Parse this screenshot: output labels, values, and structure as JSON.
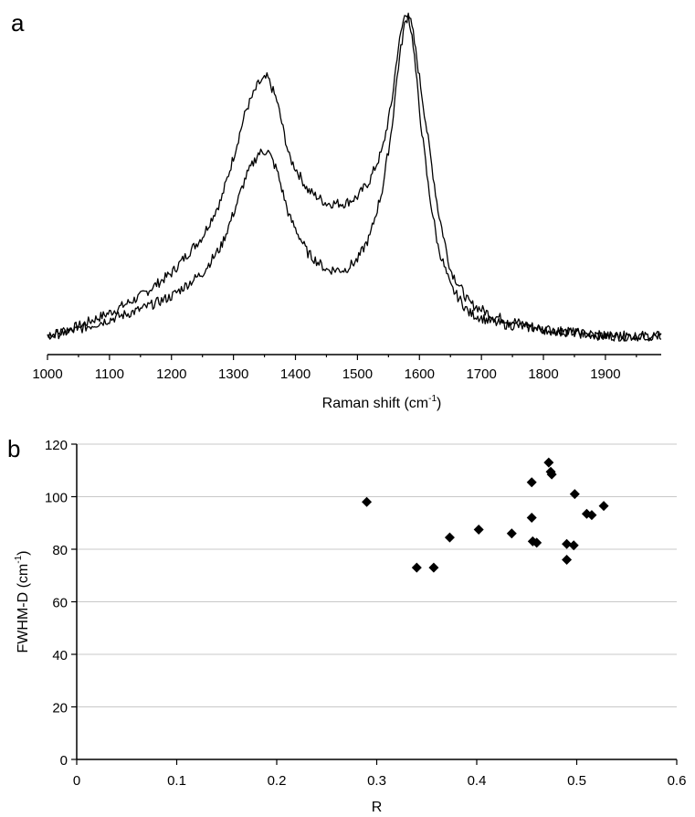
{
  "panel_a_label": "a",
  "panel_b_label": "b",
  "chart_data": [
    {
      "type": "line",
      "panel": "a",
      "xlabel": "Raman shift (cm",
      "xlabel_sup": "-1",
      "xlabel_end": ")",
      "ylabel": "",
      "xlim": [
        1000,
        1990
      ],
      "xticks": [
        1000,
        1100,
        1200,
        1300,
        1400,
        1500,
        1600,
        1700,
        1800,
        1900
      ],
      "y_axis_visible": false,
      "grid": false,
      "series": [
        {
          "x": [
            1000,
            1050,
            1100,
            1150,
            1200,
            1250,
            1280,
            1300,
            1320,
            1340,
            1355,
            1370,
            1390,
            1420,
            1450,
            1480,
            1500,
            1520,
            1540,
            1555,
            1565,
            1575,
            1582,
            1590,
            1600,
            1615,
            1630,
            1650,
            1680,
            1720,
            1760,
            1800,
            1850,
            1900,
            1950,
            1990
          ],
          "y": [
            0.02,
            0.05,
            0.09,
            0.14,
            0.21,
            0.32,
            0.43,
            0.56,
            0.7,
            0.78,
            0.8,
            0.73,
            0.56,
            0.46,
            0.42,
            0.42,
            0.44,
            0.49,
            0.58,
            0.72,
            0.88,
            0.98,
            1.0,
            0.93,
            0.8,
            0.6,
            0.4,
            0.22,
            0.12,
            0.08,
            0.06,
            0.04,
            0.03,
            0.02,
            0.02,
            0.02
          ]
        },
        {
          "x": [
            1000,
            1050,
            1100,
            1150,
            1200,
            1250,
            1280,
            1300,
            1320,
            1340,
            1355,
            1370,
            1390,
            1420,
            1450,
            1480,
            1500,
            1520,
            1540,
            1555,
            1565,
            1575,
            1582,
            1590,
            1600,
            1615,
            1630,
            1650,
            1680,
            1720,
            1760,
            1800,
            1850,
            1900,
            1950,
            1990
          ],
          "y": [
            0.02,
            0.04,
            0.07,
            0.1,
            0.14,
            0.21,
            0.29,
            0.39,
            0.5,
            0.57,
            0.58,
            0.52,
            0.38,
            0.27,
            0.22,
            0.22,
            0.25,
            0.32,
            0.46,
            0.64,
            0.82,
            0.95,
            0.99,
            0.9,
            0.7,
            0.46,
            0.29,
            0.17,
            0.09,
            0.06,
            0.05,
            0.04,
            0.03,
            0.02,
            0.02,
            0.02
          ]
        }
      ]
    },
    {
      "type": "scatter",
      "panel": "b",
      "xlabel": "R",
      "ylabel": "FWHM-D (cm",
      "ylabel_sup": "-1",
      "ylabel_end": ")",
      "xlim": [
        0,
        0.6
      ],
      "ylim": [
        0,
        120
      ],
      "xticks": [
        0,
        0.1,
        0.2,
        0.3,
        0.4,
        0.5,
        0.6
      ],
      "xtick_labels": [
        "0",
        "0.1",
        "0.2",
        "0.3",
        "0.4",
        "0.5",
        "0.6"
      ],
      "yticks": [
        0,
        20,
        40,
        60,
        80,
        100,
        120
      ],
      "grid": true,
      "marker": "diamond",
      "points": [
        {
          "x": 0.29,
          "y": 98
        },
        {
          "x": 0.34,
          "y": 73
        },
        {
          "x": 0.357,
          "y": 73
        },
        {
          "x": 0.373,
          "y": 84.5
        },
        {
          "x": 0.402,
          "y": 87.5
        },
        {
          "x": 0.435,
          "y": 86
        },
        {
          "x": 0.455,
          "y": 105.5
        },
        {
          "x": 0.455,
          "y": 92
        },
        {
          "x": 0.456,
          "y": 83
        },
        {
          "x": 0.46,
          "y": 82.5
        },
        {
          "x": 0.472,
          "y": 113
        },
        {
          "x": 0.474,
          "y": 109.5
        },
        {
          "x": 0.475,
          "y": 108.5
        },
        {
          "x": 0.49,
          "y": 82
        },
        {
          "x": 0.49,
          "y": 76
        },
        {
          "x": 0.497,
          "y": 81.5
        },
        {
          "x": 0.498,
          "y": 101
        },
        {
          "x": 0.51,
          "y": 93.5
        },
        {
          "x": 0.515,
          "y": 93
        },
        {
          "x": 0.527,
          "y": 96.5
        }
      ]
    }
  ]
}
